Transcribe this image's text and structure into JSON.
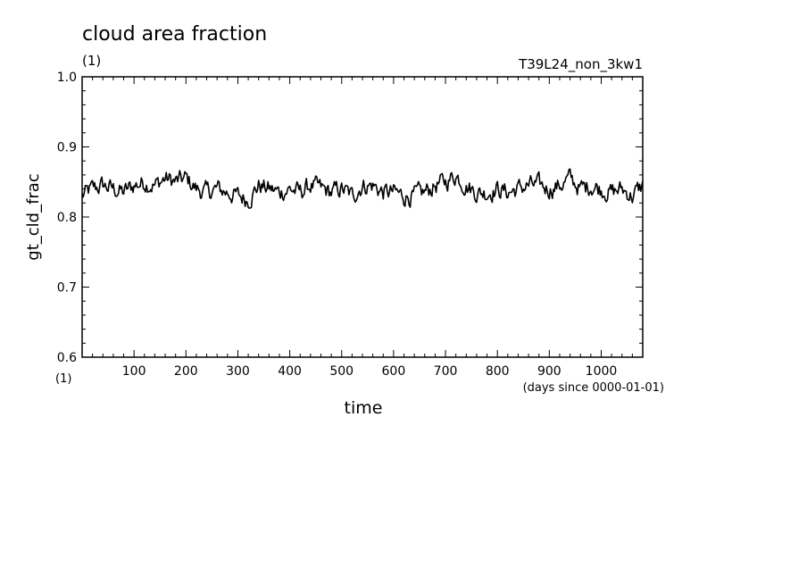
{
  "chart_data": {
    "type": "line",
    "title": "cloud area fraction",
    "unit_top": "(1)",
    "experiment": "T39L24_non_3kw1",
    "xlabel": "time",
    "x_unit": "(days since 0000-01-01)",
    "ylabel": "gt_cld_frac",
    "y_unit": "(1)",
    "xlim": [
      0,
      1080
    ],
    "ylim": [
      0.6,
      1.0
    ],
    "x_ticks": [
      "100",
      "200",
      "300",
      "400",
      "500",
      "600",
      "700",
      "800",
      "900",
      "1000"
    ],
    "y_ticks": [
      "0.6",
      "0.7",
      "0.8",
      "0.9",
      "1.0"
    ],
    "series": [
      {
        "x": [
          0,
          20,
          40,
          60,
          80,
          100,
          120,
          140,
          160,
          180,
          200,
          220,
          240,
          260,
          280,
          300,
          320,
          340,
          360,
          380,
          400,
          420,
          440,
          460,
          480,
          500,
          520,
          540,
          560,
          580,
          600,
          620,
          640,
          660,
          680,
          700,
          720,
          740,
          760,
          780,
          800,
          820,
          840,
          860,
          880,
          900,
          920,
          940,
          960,
          980,
          1000,
          1020,
          1040,
          1060,
          1080
        ],
        "y": [
          0.83,
          0.84,
          0.845,
          0.84,
          0.835,
          0.845,
          0.85,
          0.845,
          0.855,
          0.85,
          0.855,
          0.84,
          0.835,
          0.84,
          0.835,
          0.83,
          0.825,
          0.845,
          0.84,
          0.835,
          0.84,
          0.835,
          0.845,
          0.84,
          0.835,
          0.84,
          0.83,
          0.845,
          0.845,
          0.835,
          0.835,
          0.83,
          0.83,
          0.835,
          0.845,
          0.85,
          0.86,
          0.845,
          0.835,
          0.835,
          0.84,
          0.835,
          0.84,
          0.845,
          0.845,
          0.84,
          0.845,
          0.855,
          0.84,
          0.845,
          0.84,
          0.835,
          0.84,
          0.83,
          0.845
        ]
      }
    ]
  }
}
